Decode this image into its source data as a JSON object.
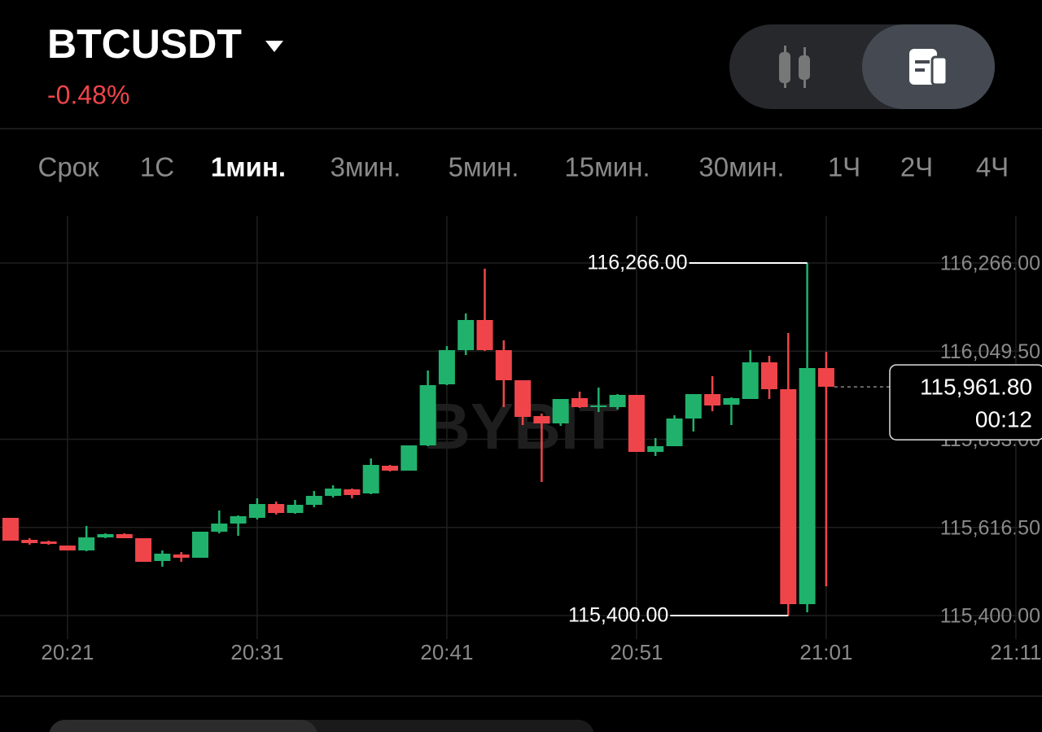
{
  "header": {
    "symbol": "BTCUSDT",
    "change": "-0.48%"
  },
  "timeframes": {
    "items": [
      "Срок",
      "1С",
      "1мин.",
      "3мин.",
      "5мин.",
      "15мин.",
      "30мин.",
      "1Ч",
      "2Ч",
      "4Ч"
    ],
    "active_index": 2
  },
  "chart_data": {
    "type": "candlestick",
    "watermark": "BYBIT",
    "up_color": "#20b26c",
    "down_color": "#ef454a",
    "grid": true,
    "categories": [
      null,
      null,
      null,
      "20:21",
      null,
      null,
      null,
      null,
      null,
      null,
      null,
      null,
      null,
      "20:31",
      null,
      null,
      null,
      null,
      null,
      null,
      null,
      null,
      null,
      "20:41",
      null,
      null,
      null,
      null,
      null,
      null,
      null,
      null,
      null,
      "20:51",
      null,
      null,
      null,
      null,
      null,
      null,
      null,
      null,
      null,
      "21:01",
      null,
      null,
      null,
      null,
      null,
      null,
      null,
      null,
      null,
      "21:11"
    ],
    "open": [
      115640,
      115586,
      115582,
      115572,
      115560,
      115592,
      115600,
      115590,
      115534,
      115550,
      115542,
      115606,
      115626,
      115640,
      115674,
      115652,
      115672,
      115694,
      115710,
      115700,
      115768,
      115756,
      115818,
      115968,
      116052,
      116126,
      116052,
      115978,
      115890,
      115872,
      115934,
      115912,
      115912,
      115942,
      115802,
      115816,
      115884,
      115944,
      115918,
      115932,
      116022,
      115956,
      115428,
      116008,
      null,
      null,
      null,
      null,
      null,
      null,
      null,
      null,
      null,
      null
    ],
    "high": [
      115640,
      115590,
      115584,
      115572,
      115620,
      115602,
      115602,
      115590,
      115560,
      115556,
      115606,
      115658,
      115646,
      115688,
      115680,
      115684,
      115706,
      115720,
      115712,
      115786,
      115770,
      115818,
      116002,
      116062,
      116142,
      116252,
      116076,
      115978,
      115896,
      115932,
      115950,
      115960,
      115944,
      115942,
      115836,
      115892,
      115944,
      115988,
      115936,
      116052,
      116038,
      116094,
      116266,
      116048,
      null,
      null,
      null,
      null,
      null,
      null,
      null,
      null,
      null,
      null
    ],
    "low": [
      115584,
      115574,
      115574,
      115560,
      115558,
      115590,
      115590,
      115532,
      115520,
      115532,
      115542,
      115602,
      115596,
      115636,
      115648,
      115650,
      115666,
      115690,
      115688,
      115698,
      115754,
      115756,
      115816,
      115966,
      116040,
      116050,
      115912,
      115868,
      115728,
      115866,
      115910,
      115900,
      115906,
      115802,
      115792,
      115816,
      115852,
      115902,
      115868,
      115932,
      115932,
      115400,
      115408,
      115472,
      null,
      null,
      null,
      null,
      null,
      null,
      null,
      null,
      null,
      null
    ],
    "close": [
      115584,
      115578,
      115576,
      115560,
      115592,
      115600,
      115590,
      115532,
      115552,
      115542,
      115606,
      115626,
      115644,
      115674,
      115652,
      115672,
      115694,
      115712,
      115696,
      115770,
      115756,
      115818,
      115966,
      116052,
      116126,
      116052,
      115978,
      115888,
      115872,
      115932,
      115912,
      115916,
      115942,
      115802,
      115816,
      115884,
      115944,
      115916,
      115934,
      116022,
      115956,
      115428,
      116008,
      115962,
      null,
      null,
      null,
      null,
      null,
      null,
      null,
      null,
      null,
      null
    ],
    "ylim": [
      115342,
      116382
    ],
    "yticks": [
      {
        "value": 116266,
        "label": "116,266.00"
      },
      {
        "value": 116049.5,
        "label": "116,049.50"
      },
      {
        "value": 115833,
        "label": "115,833.00"
      },
      {
        "value": 115616.5,
        "label": "115,616.50"
      },
      {
        "value": 115400,
        "label": "115,400.00"
      }
    ],
    "annotations": [
      {
        "value": 116266,
        "label": "116,266.00"
      },
      {
        "value": 115400,
        "label": "115,400.00"
      }
    ],
    "last_price": {
      "value": 115961.8,
      "label": "115,961.80"
    },
    "countdown": "00:12"
  }
}
